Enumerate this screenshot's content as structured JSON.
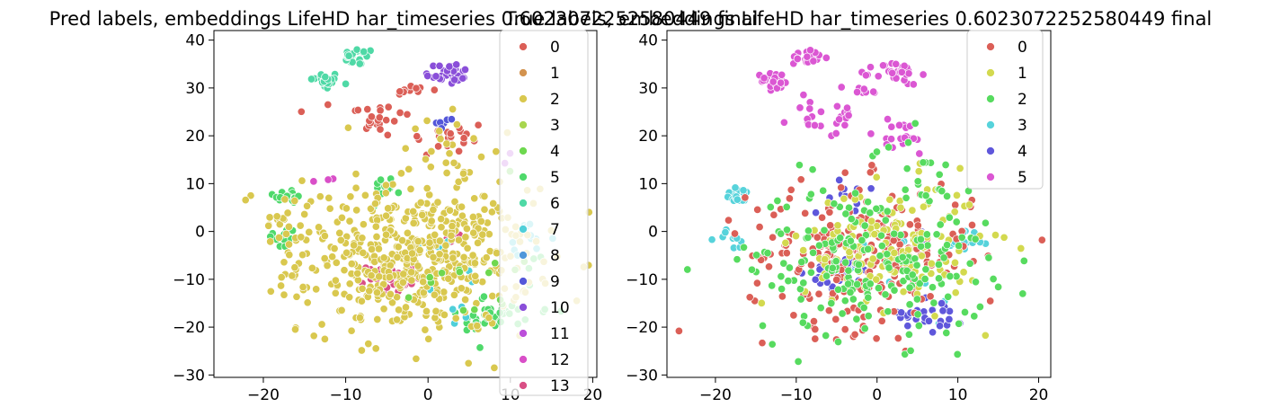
{
  "chart_data": [
    {
      "type": "scatter",
      "title": "Pred labels, embeddings LifeHD har_timeseries 0.6023072252580449 final",
      "xlim": [
        -26,
        20.5
      ],
      "ylim": [
        -30.5,
        42
      ],
      "xticks": [
        -20,
        -10,
        0,
        10,
        20
      ],
      "yticks": [
        -30,
        -20,
        -10,
        0,
        10,
        20,
        30,
        40
      ],
      "legend": {
        "placement": "upper-right",
        "entries": [
          "0",
          "1",
          "2",
          "3",
          "4",
          "5",
          "6",
          "7",
          "8",
          "9",
          "10",
          "11",
          "12",
          "13"
        ],
        "colors": [
          "#db5f57",
          "#d3934f",
          "#d9c84f",
          "#a8d64f",
          "#6ed84f",
          "#4fd96b",
          "#4fd9a6",
          "#4fcfd9",
          "#4f97d9",
          "#5457d9",
          "#8a4fd9",
          "#bb4fd9",
          "#d94fc8",
          "#d94f85"
        ]
      },
      "clusters": [
        {
          "label": "6",
          "cx": -12.5,
          "cy": 31.5,
          "sx": 0.9,
          "sy": 0.9,
          "n": 30
        },
        {
          "label": "6",
          "cx": -8.5,
          "cy": 36.5,
          "sx": 1.0,
          "sy": 0.9,
          "n": 22
        },
        {
          "label": "10",
          "cx": 2.5,
          "cy": 33.0,
          "sx": 1.4,
          "sy": 1.2,
          "n": 30
        },
        {
          "label": "0",
          "cx": -6.5,
          "cy": 24.0,
          "sx": 2.2,
          "sy": 2.2,
          "n": 24
        },
        {
          "label": "0",
          "cx": -2.0,
          "cy": 29.5,
          "sx": 1.2,
          "sy": 0.6,
          "n": 10
        },
        {
          "label": "0",
          "cx": 2.5,
          "cy": 19.5,
          "sx": 2.5,
          "sy": 2.0,
          "n": 20
        },
        {
          "label": "9",
          "cx": 2.0,
          "cy": 22.5,
          "sx": 1.0,
          "sy": 0.8,
          "n": 6
        },
        {
          "label": "5",
          "cx": -17.0,
          "cy": 7.5,
          "sx": 0.9,
          "sy": 0.8,
          "n": 18
        },
        {
          "label": "5",
          "cx": -17.5,
          "cy": -1.5,
          "sx": 1.0,
          "sy": 1.2,
          "n": 12
        },
        {
          "label": "5",
          "cx": -5.0,
          "cy": 9.5,
          "sx": 1.0,
          "sy": 1.0,
          "n": 12
        },
        {
          "label": "5",
          "cx": 7.0,
          "cy": -18.5,
          "sx": 1.5,
          "sy": 1.5,
          "n": 30
        },
        {
          "label": "5",
          "cx": 11.0,
          "cy": -15.0,
          "sx": 3.0,
          "sy": 4.0,
          "n": 20
        },
        {
          "label": "13",
          "cx": -4.5,
          "cy": -9.5,
          "sx": 1.4,
          "sy": 1.6,
          "n": 40
        },
        {
          "label": "13",
          "cx": 3.5,
          "cy": -1.5,
          "sx": 0.6,
          "sy": 0.8,
          "n": 6
        },
        {
          "label": "7",
          "cx": 1.0,
          "cy": -2.5,
          "sx": 1.2,
          "sy": 0.8,
          "n": 12
        },
        {
          "label": "7",
          "cx": 12.0,
          "cy": -1.5,
          "sx": 1.5,
          "sy": 1.5,
          "n": 14
        },
        {
          "label": "7",
          "cx": 3.0,
          "cy": -13.0,
          "sx": 2.0,
          "sy": 4.0,
          "n": 8
        },
        {
          "label": "2",
          "cx": -9.0,
          "cy": 20.5,
          "sx": 0.8,
          "sy": 0.8,
          "n": 1
        },
        {
          "label": "2",
          "cx": -1.5,
          "cy": -6.0,
          "sx": 7.0,
          "sy": 7.5,
          "n": 520
        },
        {
          "label": "2",
          "cx": -17.5,
          "cy": 1.5,
          "sx": 2.5,
          "sy": 5.0,
          "n": 30
        },
        {
          "label": "2",
          "cx": 3.0,
          "cy": 17.5,
          "sx": 3.0,
          "sy": 5.0,
          "n": 25
        },
        {
          "label": "4",
          "cx": 5.0,
          "cy": -8.0,
          "sx": 3.0,
          "sy": 6.0,
          "n": 15
        },
        {
          "label": "12",
          "cx": -12.0,
          "cy": 11.0,
          "sx": 1.5,
          "sy": 0.5,
          "n": 3
        },
        {
          "label": "11",
          "cx": 9.5,
          "cy": 15.0,
          "sx": 1.0,
          "sy": 1.0,
          "n": 2
        }
      ]
    },
    {
      "type": "scatter",
      "title": "True labels, embeddings LifeHD har_timeseries 0.6023072252580449 final",
      "xlim": [
        -26,
        21.5
      ],
      "ylim": [
        -30.5,
        42
      ],
      "xticks": [
        -20,
        -10,
        0,
        10,
        20
      ],
      "yticks": [
        -30,
        -20,
        -10,
        0,
        10,
        20,
        30,
        40
      ],
      "legend": {
        "placement": "upper-right",
        "entries": [
          "0",
          "1",
          "2",
          "3",
          "4",
          "5"
        ],
        "colors": [
          "#db5f57",
          "#d3d94f",
          "#57db5f",
          "#57d3db",
          "#5f57db",
          "#db57d3"
        ]
      },
      "clusters": [
        {
          "label": "5",
          "cx": -12.5,
          "cy": 31.5,
          "sx": 0.9,
          "sy": 0.9,
          "n": 30
        },
        {
          "label": "5",
          "cx": -8.5,
          "cy": 36.5,
          "sx": 1.0,
          "sy": 0.9,
          "n": 22
        },
        {
          "label": "5",
          "cx": 2.5,
          "cy": 33.0,
          "sx": 1.4,
          "sy": 1.2,
          "n": 30
        },
        {
          "label": "5",
          "cx": -6.5,
          "cy": 24.0,
          "sx": 2.2,
          "sy": 2.2,
          "n": 24
        },
        {
          "label": "5",
          "cx": -2.0,
          "cy": 29.5,
          "sx": 1.2,
          "sy": 0.6,
          "n": 10
        },
        {
          "label": "5",
          "cx": 2.5,
          "cy": 19.5,
          "sx": 2.5,
          "sy": 2.0,
          "n": 20
        },
        {
          "label": "3",
          "cx": -17.0,
          "cy": 7.5,
          "sx": 0.9,
          "sy": 0.8,
          "n": 18
        },
        {
          "label": "3",
          "cx": -17.5,
          "cy": -1.5,
          "sx": 1.2,
          "sy": 1.2,
          "n": 10
        },
        {
          "label": "3",
          "cx": 11.0,
          "cy": -1.5,
          "sx": 1.5,
          "sy": 1.2,
          "n": 14
        },
        {
          "label": "3",
          "cx": 3.0,
          "cy": -12.0,
          "sx": 4.0,
          "sy": 6.0,
          "n": 14
        },
        {
          "label": "4",
          "cx": -4.5,
          "cy": -8.5,
          "sx": 1.8,
          "sy": 1.6,
          "n": 35
        },
        {
          "label": "4",
          "cx": 5.5,
          "cy": -1.0,
          "sx": 0.8,
          "sy": 0.9,
          "n": 10
        },
        {
          "label": "4",
          "cx": 7.0,
          "cy": -17.0,
          "sx": 2.0,
          "sy": 2.0,
          "n": 25
        },
        {
          "label": "4",
          "cx": -3.5,
          "cy": 7.5,
          "sx": 2.0,
          "sy": 1.5,
          "n": 10
        },
        {
          "label": "0",
          "cx": -2.0,
          "cy": -5.0,
          "sx": 7.0,
          "sy": 7.5,
          "n": 240
        },
        {
          "label": "1",
          "cx": 2.0,
          "cy": -3.0,
          "sx": 5.5,
          "sy": 6.5,
          "n": 150
        },
        {
          "label": "2",
          "cx": -1.0,
          "cy": -6.0,
          "sx": 7.5,
          "sy": 8.0,
          "n": 200
        },
        {
          "label": "2",
          "cx": 4.5,
          "cy": 12.5,
          "sx": 2.5,
          "sy": 3.5,
          "n": 18
        }
      ]
    }
  ]
}
